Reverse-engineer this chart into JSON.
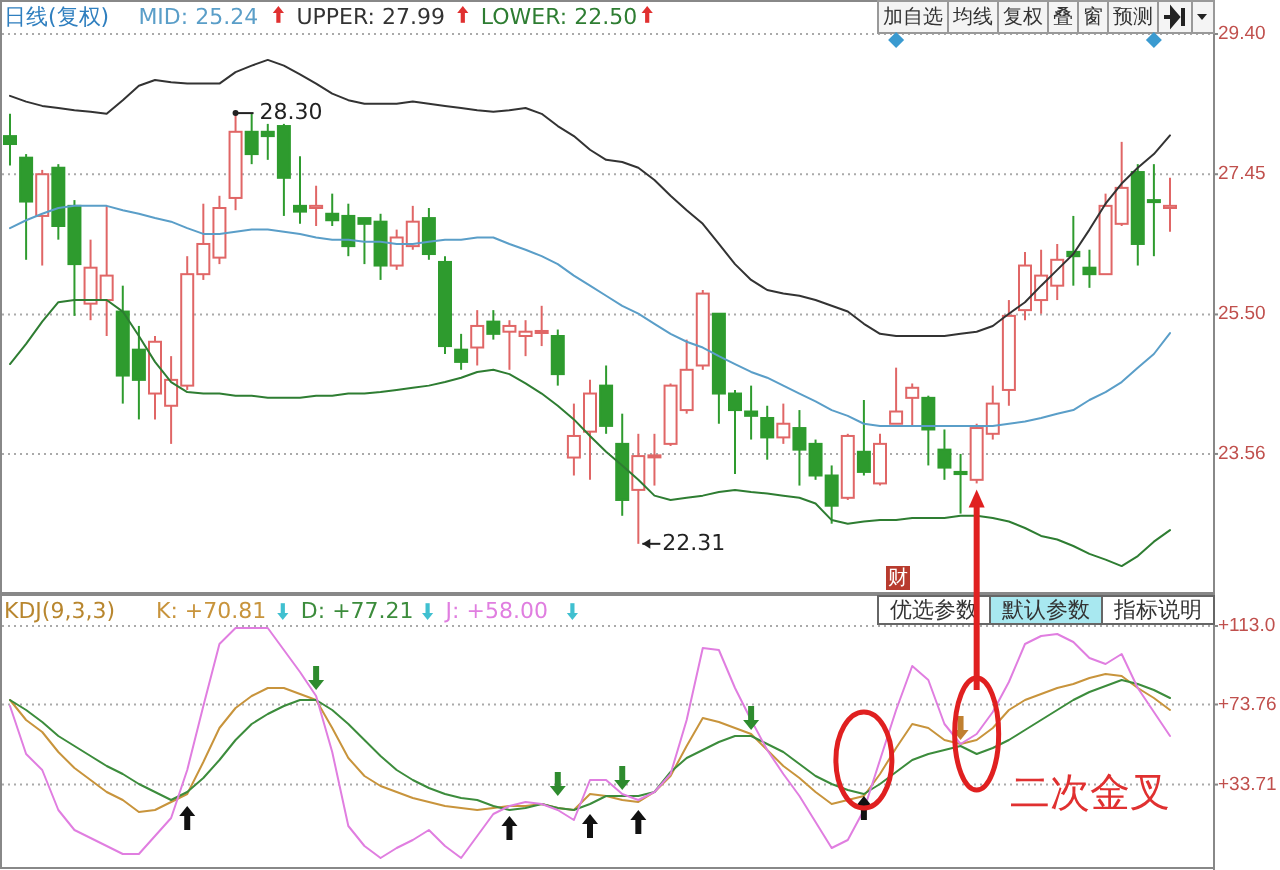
{
  "chart_data": [
    {
      "type": "candlestick",
      "title": "日线(复权)",
      "categories": [
        null,
        null,
        null,
        null,
        null,
        null,
        null,
        null,
        null,
        null,
        null,
        null,
        null,
        null,
        null,
        null,
        null,
        null,
        null,
        null,
        null,
        null,
        null,
        null,
        null,
        null,
        null,
        null,
        null,
        null,
        null,
        null,
        null,
        null,
        null,
        null,
        null,
        null,
        null,
        null,
        null,
        null,
        null,
        null,
        null,
        null,
        null,
        null,
        null,
        null,
        null,
        null,
        null,
        null,
        null,
        null,
        null,
        null,
        null,
        null,
        null,
        null,
        null,
        null,
        null,
        null,
        null,
        null,
        null,
        null,
        null,
        null,
        null
      ],
      "ohlc": [
        [
          27.98,
          28.29,
          27.57,
          27.87
        ],
        [
          27.68,
          27.73,
          26.26,
          27.07
        ],
        [
          26.87,
          27.51,
          26.18,
          27.45
        ],
        [
          27.54,
          27.59,
          26.54,
          26.73
        ],
        [
          27.01,
          27.09,
          25.48,
          26.2
        ],
        [
          25.65,
          26.54,
          25.42,
          26.15
        ],
        [
          25.7,
          27.01,
          25.2,
          26.04
        ],
        [
          25.54,
          25.9,
          24.26,
          24.65
        ],
        [
          25.01,
          25.34,
          24.04,
          24.59
        ],
        [
          24.4,
          25.2,
          24.04,
          25.12
        ],
        [
          24.23,
          24.92,
          23.7,
          24.59
        ],
        [
          24.51,
          26.31,
          24.45,
          26.06
        ],
        [
          26.06,
          27.04,
          25.98,
          26.48
        ],
        [
          26.29,
          27.15,
          26.2,
          26.98
        ],
        [
          27.12,
          28.3,
          26.95,
          28.04
        ],
        [
          28.04,
          28.29,
          27.59,
          27.73
        ],
        [
          28.04,
          28.15,
          27.65,
          27.98
        ],
        [
          28.12,
          28.15,
          26.87,
          27.4
        ],
        [
          27.01,
          27.7,
          26.76,
          26.93
        ],
        [
          26.98,
          27.29,
          26.73,
          27.01
        ],
        [
          26.9,
          27.18,
          26.73,
          26.81
        ],
        [
          26.87,
          27.04,
          26.31,
          26.45
        ],
        [
          26.84,
          26.84,
          26.2,
          26.76
        ],
        [
          26.79,
          26.9,
          25.98,
          26.18
        ],
        [
          26.18,
          26.68,
          26.12,
          26.57
        ],
        [
          26.45,
          27.01,
          26.4,
          26.79
        ],
        [
          26.84,
          26.98,
          26.26,
          26.34
        ],
        [
          26.23,
          26.31,
          24.95,
          25.06
        ],
        [
          25.01,
          25.23,
          24.73,
          24.84
        ],
        [
          25.04,
          25.56,
          24.79,
          25.34
        ],
        [
          25.4,
          25.56,
          25.15,
          25.23
        ],
        [
          25.26,
          25.42,
          24.73,
          25.34
        ],
        [
          25.2,
          25.42,
          24.92,
          25.26
        ],
        [
          25.26,
          25.62,
          25.06,
          25.27
        ],
        [
          25.2,
          25.29,
          24.51,
          24.67
        ],
        [
          23.51,
          24.26,
          23.26,
          23.81
        ],
        [
          23.87,
          24.59,
          23.2,
          24.4
        ],
        [
          24.51,
          24.79,
          23.84,
          23.95
        ],
        [
          23.7,
          24.12,
          22.7,
          22.92
        ],
        [
          23.06,
          23.84,
          22.31,
          23.53
        ],
        [
          23.53,
          23.84,
          23.12,
          23.54
        ],
        [
          23.7,
          24.54,
          23.67,
          24.51
        ],
        [
          24.17,
          25.15,
          24.12,
          24.73
        ],
        [
          24.79,
          25.84,
          24.73,
          25.79
        ],
        [
          25.51,
          25.51,
          23.98,
          24.4
        ],
        [
          24.4,
          24.45,
          23.28,
          24.17
        ],
        [
          24.15,
          24.51,
          23.76,
          24.09
        ],
        [
          24.06,
          24.23,
          23.48,
          23.79
        ],
        [
          23.79,
          24.26,
          23.7,
          23.98
        ],
        [
          23.92,
          24.17,
          23.12,
          23.62
        ],
        [
          23.7,
          23.76,
          23.2,
          23.26
        ],
        [
          23.26,
          23.4,
          22.59,
          22.84
        ],
        [
          22.95,
          23.84,
          22.92,
          23.81
        ],
        [
          23.59,
          24.31,
          23.26,
          23.31
        ],
        [
          23.15,
          23.84,
          23.12,
          23.7
        ],
        [
          23.98,
          24.76,
          23.98,
          24.15
        ],
        [
          24.34,
          24.54,
          23.95,
          24.48
        ],
        [
          24.34,
          24.37,
          23.4,
          23.9
        ],
        [
          23.62,
          23.9,
          23.2,
          23.37
        ],
        [
          23.31,
          23.56,
          22.73,
          23.28
        ],
        [
          23.2,
          23.98,
          23.15,
          23.92
        ],
        [
          23.84,
          24.51,
          23.76,
          24.26
        ],
        [
          24.45,
          25.7,
          24.23,
          25.48
        ],
        [
          25.56,
          26.37,
          25.42,
          26.18
        ],
        [
          25.7,
          26.4,
          25.51,
          26.04
        ],
        [
          25.9,
          26.48,
          25.7,
          26.26
        ],
        [
          26.37,
          26.87,
          25.9,
          26.31
        ],
        [
          26.15,
          26.4,
          25.87,
          26.06
        ],
        [
          26.06,
          27.18,
          26.06,
          27.01
        ],
        [
          26.76,
          27.9,
          26.73,
          27.26
        ],
        [
          27.48,
          27.59,
          26.18,
          26.48
        ],
        [
          27.09,
          27.59,
          26.31,
          27.07
        ],
        [
          26.98,
          27.4,
          26.65,
          27.01
        ]
      ],
      "colors": [
        "#2e9b2e",
        "#2e9b2e",
        "#e06666",
        "#2e9b2e",
        "#2e9b2e",
        "#e06666",
        "#e06666",
        "#2e9b2e",
        "#2e9b2e",
        "#e06666",
        "#e06666",
        "#e06666",
        "#e06666",
        "#e06666",
        "#e06666",
        "#2e9b2e",
        "#2e9b2e",
        "#2e9b2e",
        "#2e9b2e",
        "#e06666",
        "#2e9b2e",
        "#2e9b2e",
        "#2e9b2e",
        "#2e9b2e",
        "#e06666",
        "#e06666",
        "#2e9b2e",
        "#2e9b2e",
        "#2e9b2e",
        "#e06666",
        "#2e9b2e",
        "#e06666",
        "#e06666",
        "#e06666",
        "#2e9b2e",
        "#e06666",
        "#e06666",
        "#2e9b2e",
        "#2e9b2e",
        "#e06666",
        "#e06666",
        "#e06666",
        "#e06666",
        "#e06666",
        "#2e9b2e",
        "#2e9b2e",
        "#2e9b2e",
        "#2e9b2e",
        "#e06666",
        "#2e9b2e",
        "#2e9b2e",
        "#2e9b2e",
        "#e06666",
        "#2e9b2e",
        "#e06666",
        "#e06666",
        "#e06666",
        "#2e9b2e",
        "#2e9b2e",
        "#2e9b2e",
        "#e06666",
        "#e06666",
        "#e06666",
        "#e06666",
        "#e06666",
        "#e06666",
        "#2e9b2e",
        "#2e9b2e",
        "#e06666",
        "#e06666",
        "#2e9b2e",
        "#2e9b2e",
        "#e06666"
      ],
      "series": [
        {
          "name": "MID: 25.24",
          "type": "line",
          "color": "#5a9ec8",
          "values": [
            26.7,
            26.81,
            26.9,
            26.98,
            27.01,
            27.01,
            27.01,
            26.95,
            26.9,
            26.84,
            26.79,
            26.7,
            26.62,
            26.62,
            26.65,
            26.68,
            26.68,
            26.65,
            26.62,
            26.57,
            26.54,
            26.54,
            26.51,
            26.51,
            26.48,
            26.48,
            26.51,
            26.54,
            26.54,
            26.57,
            26.57,
            26.48,
            26.4,
            26.31,
            26.2,
            26.04,
            25.9,
            25.76,
            25.62,
            25.51,
            25.37,
            25.23,
            25.12,
            25.04,
            24.92,
            24.81,
            24.7,
            24.62,
            24.51,
            24.4,
            24.29,
            24.17,
            24.09,
            23.98,
            23.95,
            23.95,
            23.95,
            23.95,
            23.95,
            23.95,
            23.95,
            23.95,
            23.98,
            24.01,
            24.06,
            24.12,
            24.17,
            24.31,
            24.42,
            24.56,
            24.76,
            24.95,
            25.24
          ]
        },
        {
          "name": "UPPER: 27.99",
          "type": "line",
          "color": "#333333",
          "values": [
            28.54,
            28.46,
            28.4,
            28.37,
            28.34,
            28.32,
            28.29,
            28.48,
            28.68,
            28.76,
            28.73,
            28.71,
            28.71,
            28.71,
            28.87,
            28.96,
            29.04,
            28.96,
            28.84,
            28.71,
            28.57,
            28.48,
            28.43,
            28.43,
            28.43,
            28.46,
            28.43,
            28.4,
            28.37,
            28.34,
            28.32,
            28.34,
            28.37,
            28.29,
            28.12,
            27.98,
            27.79,
            27.65,
            27.62,
            27.54,
            27.37,
            27.15,
            26.95,
            26.76,
            26.48,
            26.2,
            25.98,
            25.84,
            25.79,
            25.76,
            25.7,
            25.62,
            25.54,
            25.37,
            25.23,
            25.2,
            25.2,
            25.2,
            25.2,
            25.23,
            25.26,
            25.34,
            25.51,
            25.67,
            25.9,
            26.12,
            26.34,
            26.68,
            27.04,
            27.32,
            27.54,
            27.73,
            27.99
          ]
        },
        {
          "name": "LOWER: 22.50",
          "type": "line",
          "color": "#2e7d32",
          "values": [
            24.81,
            25.09,
            25.4,
            25.67,
            25.7,
            25.7,
            25.7,
            25.54,
            25.2,
            24.84,
            24.56,
            24.42,
            24.4,
            24.4,
            24.37,
            24.37,
            24.34,
            24.34,
            24.34,
            24.37,
            24.37,
            24.4,
            24.4,
            24.42,
            24.45,
            24.48,
            24.51,
            24.56,
            24.62,
            24.7,
            24.73,
            24.67,
            24.54,
            24.4,
            24.23,
            24.04,
            23.81,
            23.59,
            23.4,
            23.2,
            22.98,
            22.92,
            22.95,
            22.98,
            23.03,
            23.06,
            23.03,
            23.01,
            22.98,
            22.95,
            22.87,
            22.64,
            22.59,
            22.62,
            22.64,
            22.64,
            22.67,
            22.67,
            22.67,
            22.7,
            22.7,
            22.67,
            22.62,
            22.53,
            22.42,
            22.37,
            22.28,
            22.17,
            22.09,
            22.0,
            22.14,
            22.34,
            22.5
          ]
        }
      ],
      "ylim": [
        21.64,
        29.4
      ],
      "yticks": [
        {
          "value": 29.4,
          "label": "29.40"
        },
        {
          "value": 27.45,
          "label": "27.45"
        },
        {
          "value": 25.5,
          "label": "25.50"
        },
        {
          "value": 23.56,
          "label": "23.56"
        }
      ],
      "grid": "y",
      "annotations": [
        "加自选",
        "均线",
        "复权",
        "叠",
        "窗",
        "预测",
        "28.30",
        "22.31",
        "财"
      ]
    },
    {
      "type": "line",
      "title": "KDJ(9,3,3)",
      "categories": [
        null,
        null,
        null,
        null,
        null,
        null,
        null,
        null,
        null,
        null,
        null,
        null,
        null,
        null,
        null,
        null,
        null,
        null,
        null,
        null,
        null,
        null,
        null,
        null,
        null,
        null,
        null,
        null,
        null,
        null,
        null,
        null,
        null,
        null,
        null,
        null,
        null,
        null,
        null,
        null,
        null,
        null,
        null,
        null,
        null,
        null,
        null,
        null,
        null,
        null,
        null,
        null,
        null,
        null,
        null,
        null,
        null,
        null,
        null,
        null,
        null,
        null,
        null,
        null,
        null,
        null,
        null,
        null,
        null,
        null,
        null,
        null,
        null
      ],
      "series": [
        {
          "name": "K: +70.81",
          "color": "#c8943c",
          "values": [
            76,
            66,
            60,
            50,
            42,
            36,
            30,
            26,
            20,
            21,
            25,
            29,
            45,
            62,
            72,
            78,
            82,
            82,
            79,
            76,
            62,
            47,
            38,
            33,
            30,
            27,
            25,
            23,
            22,
            21,
            22,
            23,
            23,
            24,
            22,
            21,
            29,
            28,
            26,
            25,
            30,
            38,
            53,
            67,
            65,
            62,
            59,
            51,
            43,
            37,
            30,
            24,
            26,
            28,
            39,
            52,
            64,
            62,
            56,
            54,
            56,
            62,
            71,
            76,
            79,
            82,
            84,
            87,
            89,
            88,
            82,
            77,
            71
          ]
        },
        {
          "name": "D: +77.21",
          "color": "#3c8c3c",
          "values": [
            76,
            71,
            65,
            58,
            53,
            48,
            43,
            39,
            34,
            30,
            26,
            30,
            37,
            46,
            56,
            64,
            69,
            73,
            76,
            76,
            71,
            64,
            56,
            48,
            41,
            36,
            32,
            29,
            27,
            26,
            23,
            21,
            22,
            24,
            22,
            21,
            24,
            28,
            28,
            28,
            30,
            40,
            47,
            51,
            55,
            58,
            58,
            54,
            50,
            44,
            38,
            34,
            31,
            29,
            34,
            40,
            46,
            49,
            51,
            53,
            49,
            52,
            56,
            61,
            66,
            71,
            76,
            80,
            83,
            86,
            84,
            81,
            77
          ]
        },
        {
          "name": "J: +58.00",
          "color": "#e07ee0",
          "values": [
            73,
            49,
            41,
            21,
            11,
            7,
            3,
            -1,
            -1,
            8,
            17,
            41,
            73,
            104,
            112,
            112,
            112,
            101,
            90,
            78,
            50,
            13,
            3,
            -3,
            2,
            6,
            11,
            3,
            -3,
            8,
            19,
            23,
            25,
            24,
            21,
            16,
            36,
            36,
            29,
            26,
            30,
            39,
            66,
            102,
            101,
            82,
            66,
            51,
            39,
            28,
            15,
            2,
            6,
            21,
            46,
            71,
            93,
            86,
            64,
            54,
            59,
            70,
            85,
            104,
            108,
            109,
            105,
            97,
            94,
            99,
            82,
            70,
            58
          ]
        }
      ],
      "ylim": [
        -7,
        128
      ],
      "yticks": [
        {
          "value": 113,
          "label": "+113.0"
        },
        {
          "value": 73.76,
          "label": "+73.76"
        },
        {
          "value": 33.71,
          "label": "+33.71"
        }
      ],
      "grid": "y",
      "annotations": [
        "优选参数",
        "默认参数",
        "指标说明",
        "二次金叉"
      ]
    }
  ]
}
